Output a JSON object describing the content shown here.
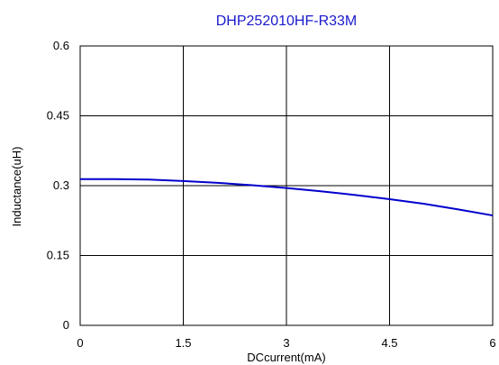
{
  "chart_data": {
    "type": "line",
    "title": "DHP252010HF-R33M",
    "xlabel": "DCcurrent(mA)",
    "ylabel": "Inductance(uH)",
    "xlim": [
      0,
      6
    ],
    "ylim": [
      0,
      0.6
    ],
    "xticks": [
      0,
      1.5,
      3,
      4.5,
      6
    ],
    "xtick_labels": [
      "0",
      "1.5",
      "3",
      "4.5",
      "6"
    ],
    "yticks": [
      0,
      0.15,
      0.3,
      0.45,
      0.6
    ],
    "ytick_labels": [
      "0",
      "0.15",
      "0.3",
      "0.45",
      "0.6"
    ],
    "grid": true,
    "legend": "none",
    "series": [
      {
        "color": "#0000cc",
        "x": [
          0,
          0.5,
          1,
          1.5,
          2,
          2.5,
          3,
          3.5,
          4,
          4.5,
          5,
          5.5,
          6
        ],
        "y": [
          0.314,
          0.314,
          0.313,
          0.31,
          0.306,
          0.301,
          0.295,
          0.288,
          0.28,
          0.271,
          0.261,
          0.249,
          0.236
        ]
      }
    ],
    "colors": {
      "title": "#1a1acc",
      "grid": "#000000",
      "frame": "#000000"
    }
  }
}
